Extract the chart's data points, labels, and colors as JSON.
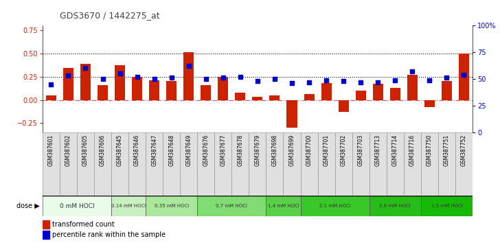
{
  "title": "GDS3670 / 1442275_at",
  "samples": [
    "GSM387601",
    "GSM387602",
    "GSM387605",
    "GSM387606",
    "GSM387645",
    "GSM387646",
    "GSM387647",
    "GSM387648",
    "GSM387649",
    "GSM387676",
    "GSM387677",
    "GSM387678",
    "GSM387679",
    "GSM387698",
    "GSM387699",
    "GSM387700",
    "GSM387701",
    "GSM387702",
    "GSM387703",
    "GSM387713",
    "GSM387714",
    "GSM387716",
    "GSM387750",
    "GSM387751",
    "GSM387752"
  ],
  "red_values": [
    0.05,
    0.34,
    0.39,
    0.16,
    0.37,
    0.25,
    0.21,
    0.2,
    0.51,
    0.16,
    0.25,
    0.08,
    0.03,
    0.05,
    -0.3,
    0.06,
    0.18,
    -0.13,
    0.1,
    0.17,
    0.13,
    0.27,
    -0.08,
    0.2,
    0.5
  ],
  "blue_right": [
    45,
    53,
    60,
    50,
    55,
    52,
    50,
    51,
    62,
    50,
    51,
    52,
    48,
    50,
    46,
    47,
    49,
    48,
    47,
    47,
    49,
    57,
    49,
    51,
    54
  ],
  "dose_groups": [
    {
      "label": "0 mM HOCl",
      "start": 0,
      "end": 4,
      "color": "#e8fae8"
    },
    {
      "label": "0.14 mM HOCl",
      "start": 4,
      "end": 6,
      "color": "#c8f0c0"
    },
    {
      "label": "0.35 mM HOCl",
      "start": 6,
      "end": 9,
      "color": "#a8e898"
    },
    {
      "label": "0.7 mM HOCl",
      "start": 9,
      "end": 13,
      "color": "#80dc70"
    },
    {
      "label": "1.4 mM HOCl",
      "start": 13,
      "end": 15,
      "color": "#58d048"
    },
    {
      "label": "2.1 mM HOCl",
      "start": 15,
      "end": 19,
      "color": "#38c828"
    },
    {
      "label": "2.8 mM HOCl",
      "start": 19,
      "end": 22,
      "color": "#28bc18"
    },
    {
      "label": "3.5 mM HOCl",
      "start": 22,
      "end": 25,
      "color": "#18b808"
    }
  ],
  "ylim_left": [
    -0.35,
    0.8
  ],
  "ylim_right": [
    0,
    100
  ],
  "bar_color": "#cc2200",
  "dot_color": "#0000cc",
  "right_ticks": [
    0,
    25,
    50,
    75,
    100
  ],
  "right_tick_labels": [
    "0",
    "25",
    "50",
    "75",
    "100%"
  ]
}
